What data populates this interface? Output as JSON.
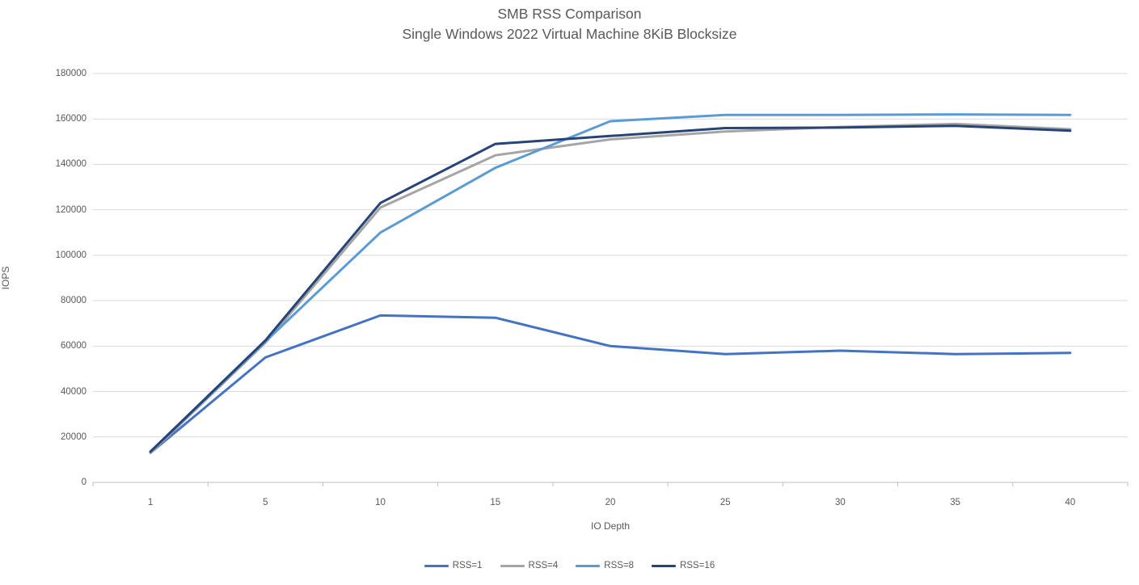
{
  "window": {
    "background": "#ffffff"
  },
  "chart_data": {
    "type": "line",
    "title": "SMB RSS Comparison",
    "subtitle": "Single Windows 2022 Virtual Machine 8KiB Blocksize",
    "xlabel": "IO Depth",
    "ylabel": "IOPS",
    "categories": [
      "1",
      "5",
      "10",
      "15",
      "20",
      "25",
      "30",
      "35",
      "40"
    ],
    "series": [
      {
        "name": "RSS=1",
        "color": "#4472C4",
        "values": [
          13000,
          55000,
          73500,
          72500,
          60000,
          56500,
          58000,
          56500,
          57000
        ]
      },
      {
        "name": "RSS=4",
        "color": "#A5A5A5",
        "values": [
          13000,
          61500,
          121000,
          144000,
          151000,
          154500,
          156500,
          157800,
          155500
        ]
      },
      {
        "name": "RSS=8",
        "color": "#5B9BD5",
        "values": [
          13500,
          62000,
          110000,
          138500,
          159000,
          161800,
          161800,
          162000,
          161800
        ]
      },
      {
        "name": "RSS=16",
        "color": "#264478",
        "values": [
          13500,
          62500,
          123000,
          149000,
          152500,
          156000,
          156200,
          157000,
          154800
        ]
      }
    ],
    "ylim": [
      0,
      180000
    ],
    "ytick_step": 20000,
    "grid": true,
    "legend_position": "bottom",
    "colors": {
      "gridline": "#D9D9D9",
      "axis_line": "#BFBFBF",
      "text": "#595959"
    }
  }
}
